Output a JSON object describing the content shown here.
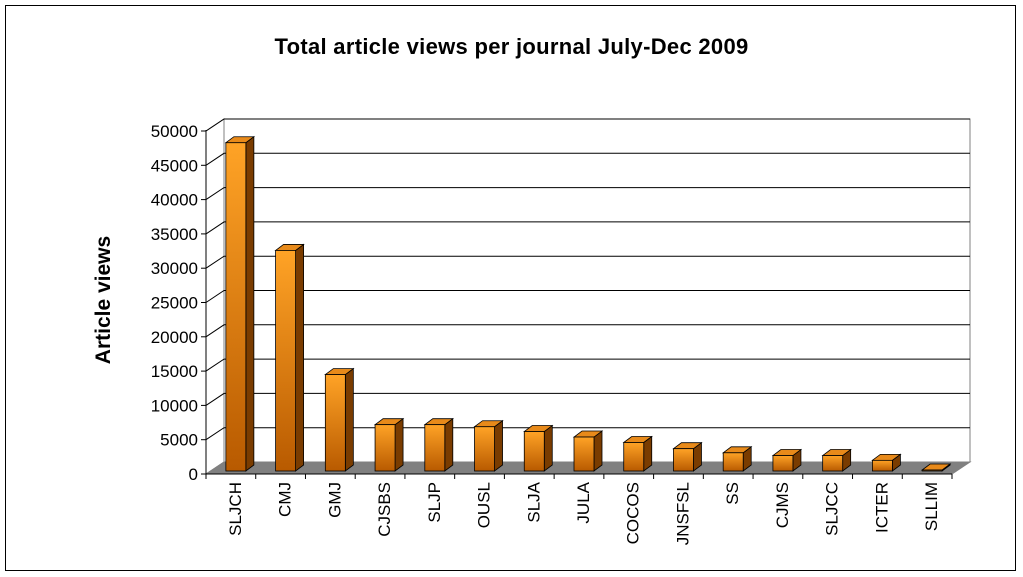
{
  "chart_data": {
    "type": "bar",
    "title": "Total article views per journal July-Dec 2009",
    "ylabel": "Article views",
    "xlabel": "",
    "ylim": [
      0,
      50000
    ],
    "yticks": [
      0,
      5000,
      10000,
      15000,
      20000,
      25000,
      30000,
      35000,
      40000,
      45000,
      50000
    ],
    "grid": true,
    "three_d": true,
    "categories": [
      "SLJCH",
      "CMJ",
      "GMJ",
      "CJSBS",
      "SLJP",
      "OUSL",
      "SLJA",
      "JULA",
      "COCOS",
      "JNSFSL",
      "SS",
      "CJMS",
      "SLJCC",
      "ICTER",
      "SLLIM"
    ],
    "values": [
      48000,
      32300,
      14200,
      6900,
      6900,
      6600,
      5900,
      5100,
      4300,
      3400,
      2800,
      2400,
      2400,
      1700,
      100
    ],
    "colors": {
      "bar_front_top": "#ffa326",
      "bar_front_bottom": "#b85a00",
      "bar_side": "#7a3c00",
      "bar_top": "#e88a1a",
      "floor": "#808080",
      "wall": "#ffffff"
    }
  }
}
